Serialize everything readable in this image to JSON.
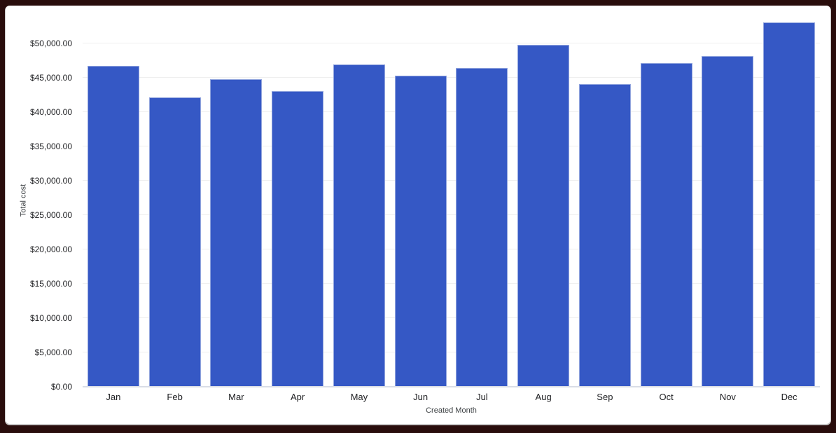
{
  "frame": {
    "border_color": "#290d0c",
    "card_background": "#ffffff"
  },
  "chart_data": {
    "type": "bar",
    "title": "",
    "xlabel": "Created Month",
    "ylabel": "Total cost",
    "categories": [
      "Jan",
      "Feb",
      "Mar",
      "Apr",
      "May",
      "Jun",
      "Jul",
      "Aug",
      "Sep",
      "Oct",
      "Nov",
      "Dec"
    ],
    "values": [
      46600,
      42000,
      44700,
      43000,
      46800,
      45200,
      46300,
      49700,
      44000,
      47000,
      48100,
      53000
    ],
    "series_name": "Total cost",
    "bar_color": "#3558c5",
    "bar_edge_color": "#93a6de",
    "grid": "horizontal",
    "gridline_color": "#efefef",
    "axis_line_color": "#d9dde6",
    "tick_label_color": "#202124",
    "ylim": [
      0,
      55000
    ],
    "y_ticks": [
      {
        "value": 0,
        "label": "$0.00"
      },
      {
        "value": 5000,
        "label": "$5,000.00"
      },
      {
        "value": 10000,
        "label": "$10,000.00"
      },
      {
        "value": 15000,
        "label": "$15,000.00"
      },
      {
        "value": 20000,
        "label": "$20,000.00"
      },
      {
        "value": 25000,
        "label": "$25,000.00"
      },
      {
        "value": 30000,
        "label": "$30,000.00"
      },
      {
        "value": 35000,
        "label": "$35,000.00"
      },
      {
        "value": 40000,
        "label": "$40,000.00"
      },
      {
        "value": 45000,
        "label": "$45,000.00"
      },
      {
        "value": 50000,
        "label": "$50,000.00"
      }
    ]
  }
}
